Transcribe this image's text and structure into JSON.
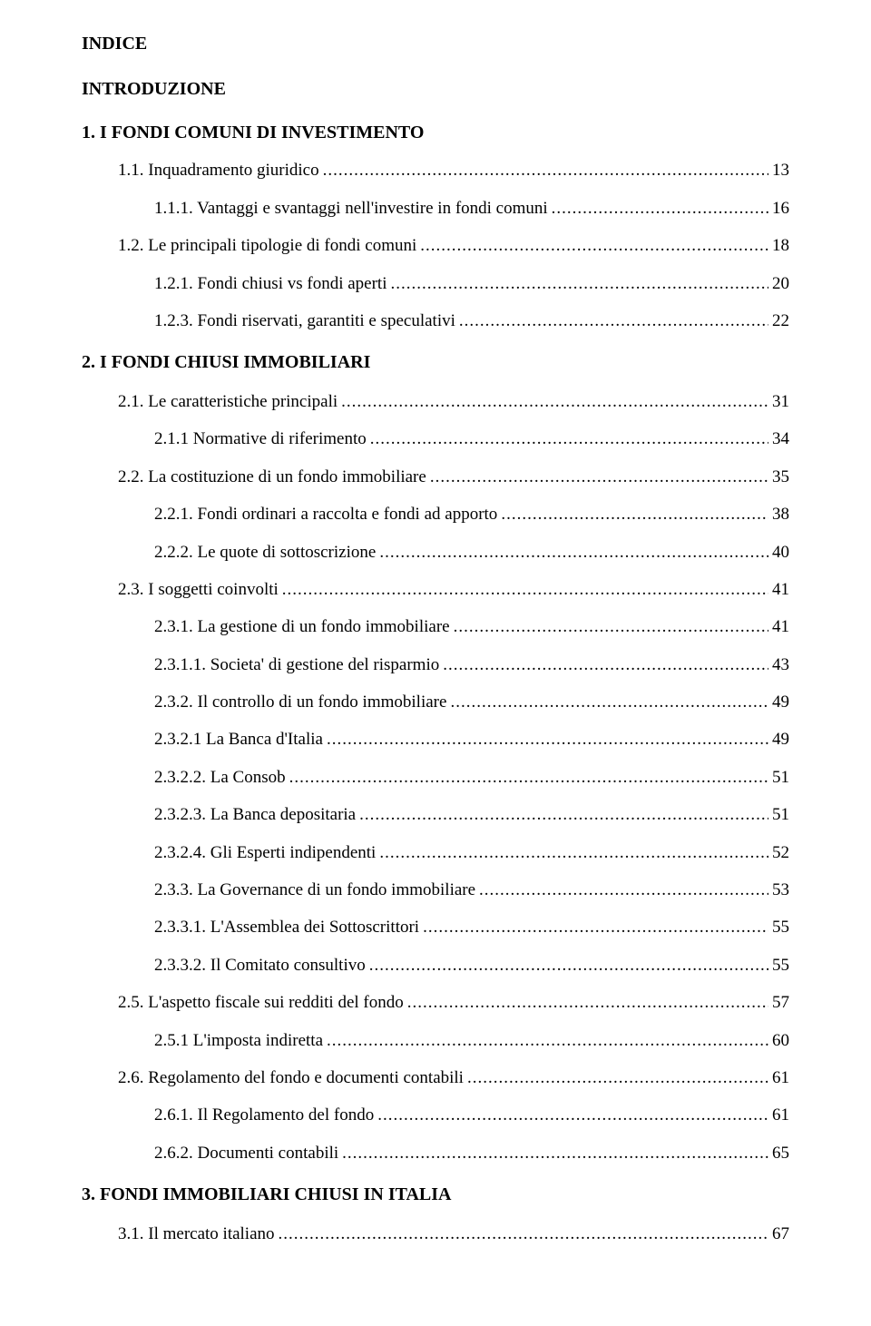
{
  "title": "INDICE",
  "intro": "INTRODUZIONE",
  "chapters": [
    {
      "key": "ch1",
      "text": "1. I FONDI COMUNI DI INVESTIMENTO"
    },
    {
      "key": "ch2",
      "text": "2. I FONDI CHIUSI IMMOBILIARI"
    },
    {
      "key": "ch3",
      "text": "3. FONDI IMMOBILIARI CHIUSI IN ITALIA"
    }
  ],
  "entries": {
    "e1": {
      "label": "1.1. Inquadramento giuridico",
      "page": "13"
    },
    "e2": {
      "label": "1.1.1. Vantaggi e svantaggi nell'investire in fondi comuni",
      "page": "16"
    },
    "e3": {
      "label": "1.2. Le principali tipologie di fondi comuni",
      "page": "18"
    },
    "e4": {
      "label": "1.2.1. Fondi chiusi vs fondi aperti",
      "page": "20"
    },
    "e5": {
      "label": "1.2.3. Fondi riservati, garantiti e speculativi",
      "page": "22"
    },
    "e6": {
      "label": "2.1. Le caratteristiche principali",
      "page": "31"
    },
    "e7": {
      "label": "2.1.1 Normative di riferimento",
      "page": "34"
    },
    "e8": {
      "label": "2.2. La costituzione di un fondo immobiliare",
      "page": "35"
    },
    "e9": {
      "label": "2.2.1. Fondi ordinari a raccolta e fondi ad apporto",
      "page": "38"
    },
    "e10": {
      "label": "2.2.2. Le quote di sottoscrizione",
      "page": "40"
    },
    "e11": {
      "label": "2.3. I soggetti coinvolti",
      "page": "41"
    },
    "e12": {
      "label": "2.3.1. La gestione di un fondo immobiliare",
      "page": "41"
    },
    "e13": {
      "label": "2.3.1.1. Societa' di gestione del risparmio",
      "page": "43"
    },
    "e14": {
      "label": "2.3.2. Il controllo di un fondo immobiliare",
      "page": "49"
    },
    "e15": {
      "label": "2.3.2.1 La Banca d'Italia",
      "page": "49"
    },
    "e16": {
      "label": "2.3.2.2. La Consob",
      "page": "51"
    },
    "e17": {
      "label": "2.3.2.3. La Banca depositaria",
      "page": "51"
    },
    "e18": {
      "label": "2.3.2.4. Gli Esperti indipendenti",
      "page": "52"
    },
    "e19": {
      "label": "2.3.3. La Governance di un fondo immobiliare",
      "page": "53"
    },
    "e20": {
      "label": "2.3.3.1. L'Assemblea dei Sottoscrittori",
      "page": "55"
    },
    "e21": {
      "label": "2.3.3.2. Il Comitato consultivo",
      "page": "55"
    },
    "e22": {
      "label": "2.5. L'aspetto fiscale sui redditi del fondo",
      "page": "57"
    },
    "e23": {
      "label": "2.5.1 L'imposta indiretta",
      "page": "60"
    },
    "e24": {
      "label": "2.6. Regolamento del fondo e documenti contabili",
      "page": "61"
    },
    "e25": {
      "label": "2.6.1. Il Regolamento del fondo",
      "page": "61"
    },
    "e26": {
      "label": "2.6.2. Documenti contabili",
      "page": "65"
    },
    "e27": {
      "label": "3.1. Il mercato italiano",
      "page": "67"
    }
  }
}
